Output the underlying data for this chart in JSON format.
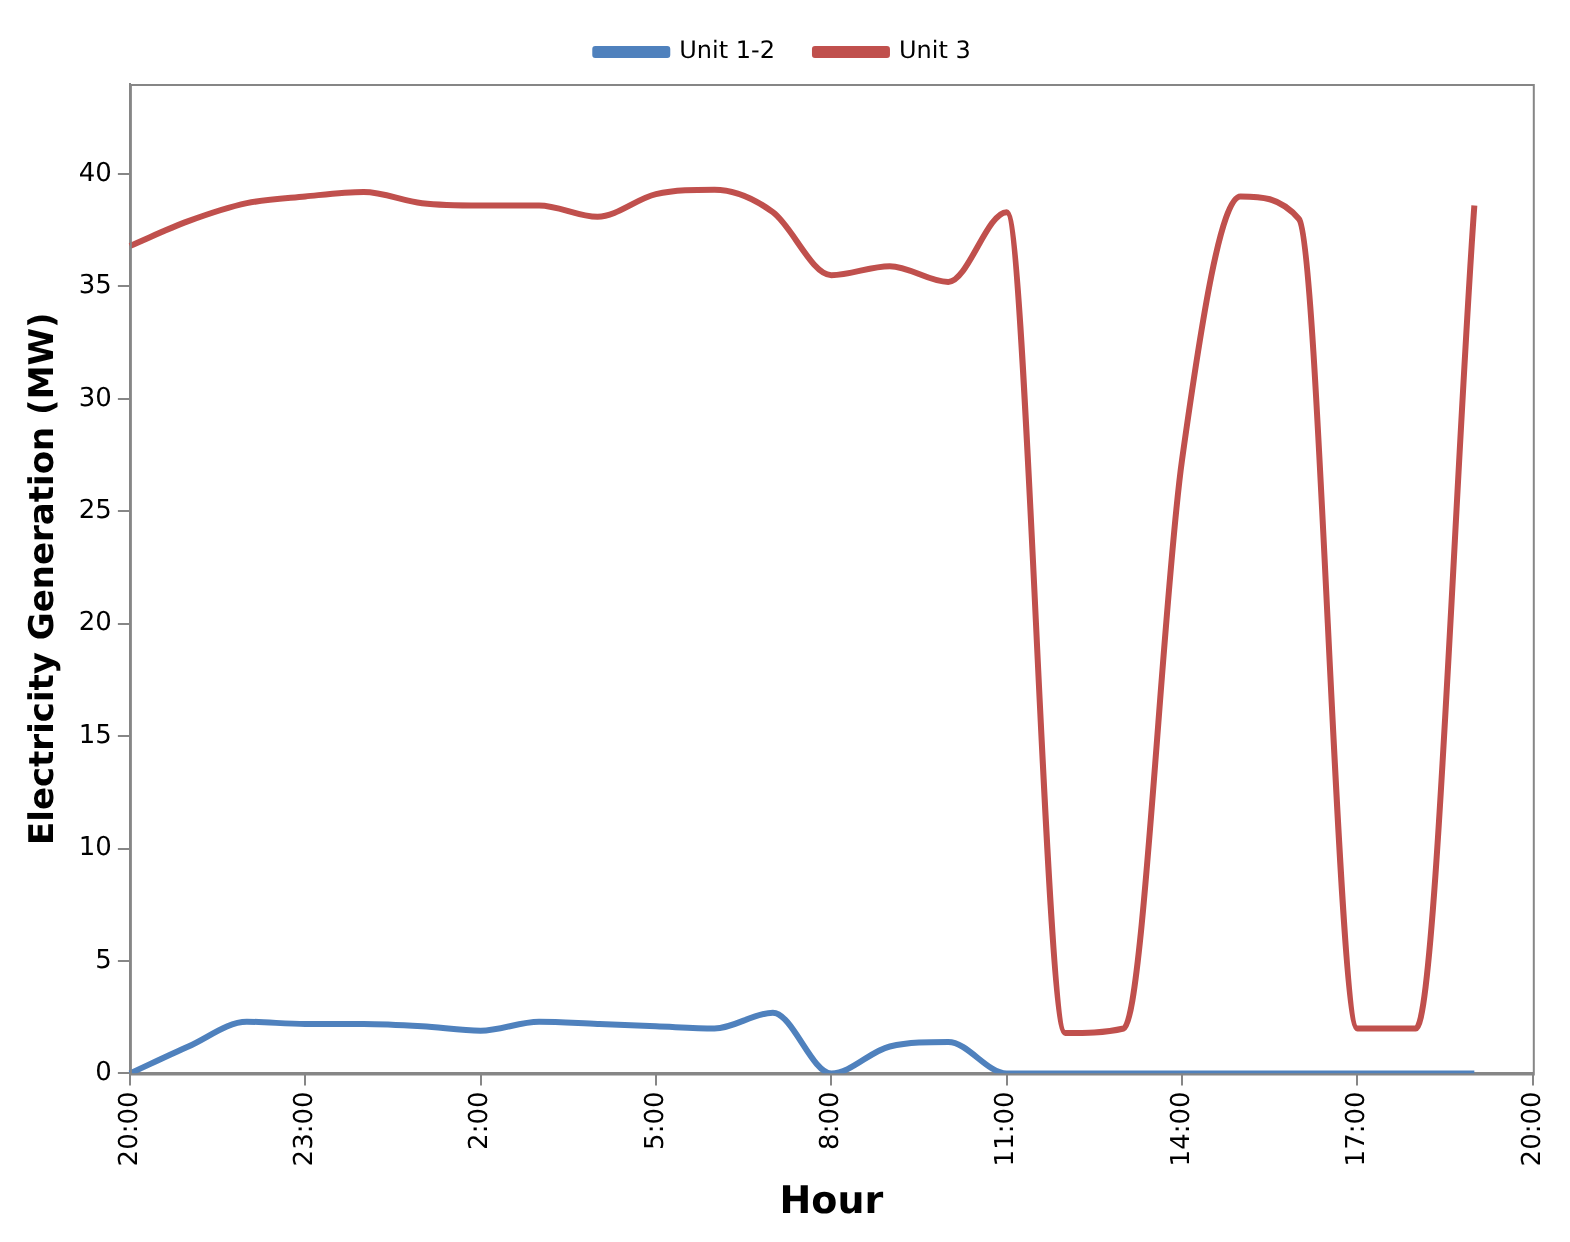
{
  "chart_data": {
    "type": "line",
    "xlabel": "Hour",
    "ylabel": "Electricity Generation (MW)",
    "categories": [
      "20:00",
      null,
      null,
      "23:00",
      null,
      null,
      "2:00",
      null,
      null,
      "5:00",
      null,
      null,
      "8:00",
      null,
      null,
      "11:00",
      null,
      null,
      "14:00",
      null,
      null,
      "17:00",
      null,
      null,
      "20:00"
    ],
    "series": [
      {
        "name": "Unit 1-2",
        "color": "#4f81bd",
        "values": [
          0,
          1.2,
          2.3,
          2.2,
          2.2,
          2.1,
          1.9,
          2.3,
          2.2,
          2.1,
          2.0,
          2.7,
          0,
          1.2,
          1.4,
          0,
          0,
          0,
          0,
          0,
          0,
          0,
          0,
          0,
          null
        ]
      },
      {
        "name": "Unit 3",
        "color": "#c0504d",
        "values": [
          36.8,
          37.9,
          38.7,
          39.0,
          39.2,
          38.7,
          38.6,
          38.6,
          38.1,
          39.1,
          39.3,
          38.3,
          35.5,
          35.9,
          35.2,
          38.3,
          1.8,
          2.0,
          27.3,
          39.0,
          38.0,
          2.0,
          2.0,
          38.6,
          null
        ]
      }
    ],
    "ylim": [
      0,
      44
    ],
    "yticks": [
      0,
      5,
      10,
      15,
      20,
      25,
      30,
      35,
      40
    ],
    "grid": false,
    "legend": "top",
    "marker": "none",
    "line_style": "solid"
  }
}
